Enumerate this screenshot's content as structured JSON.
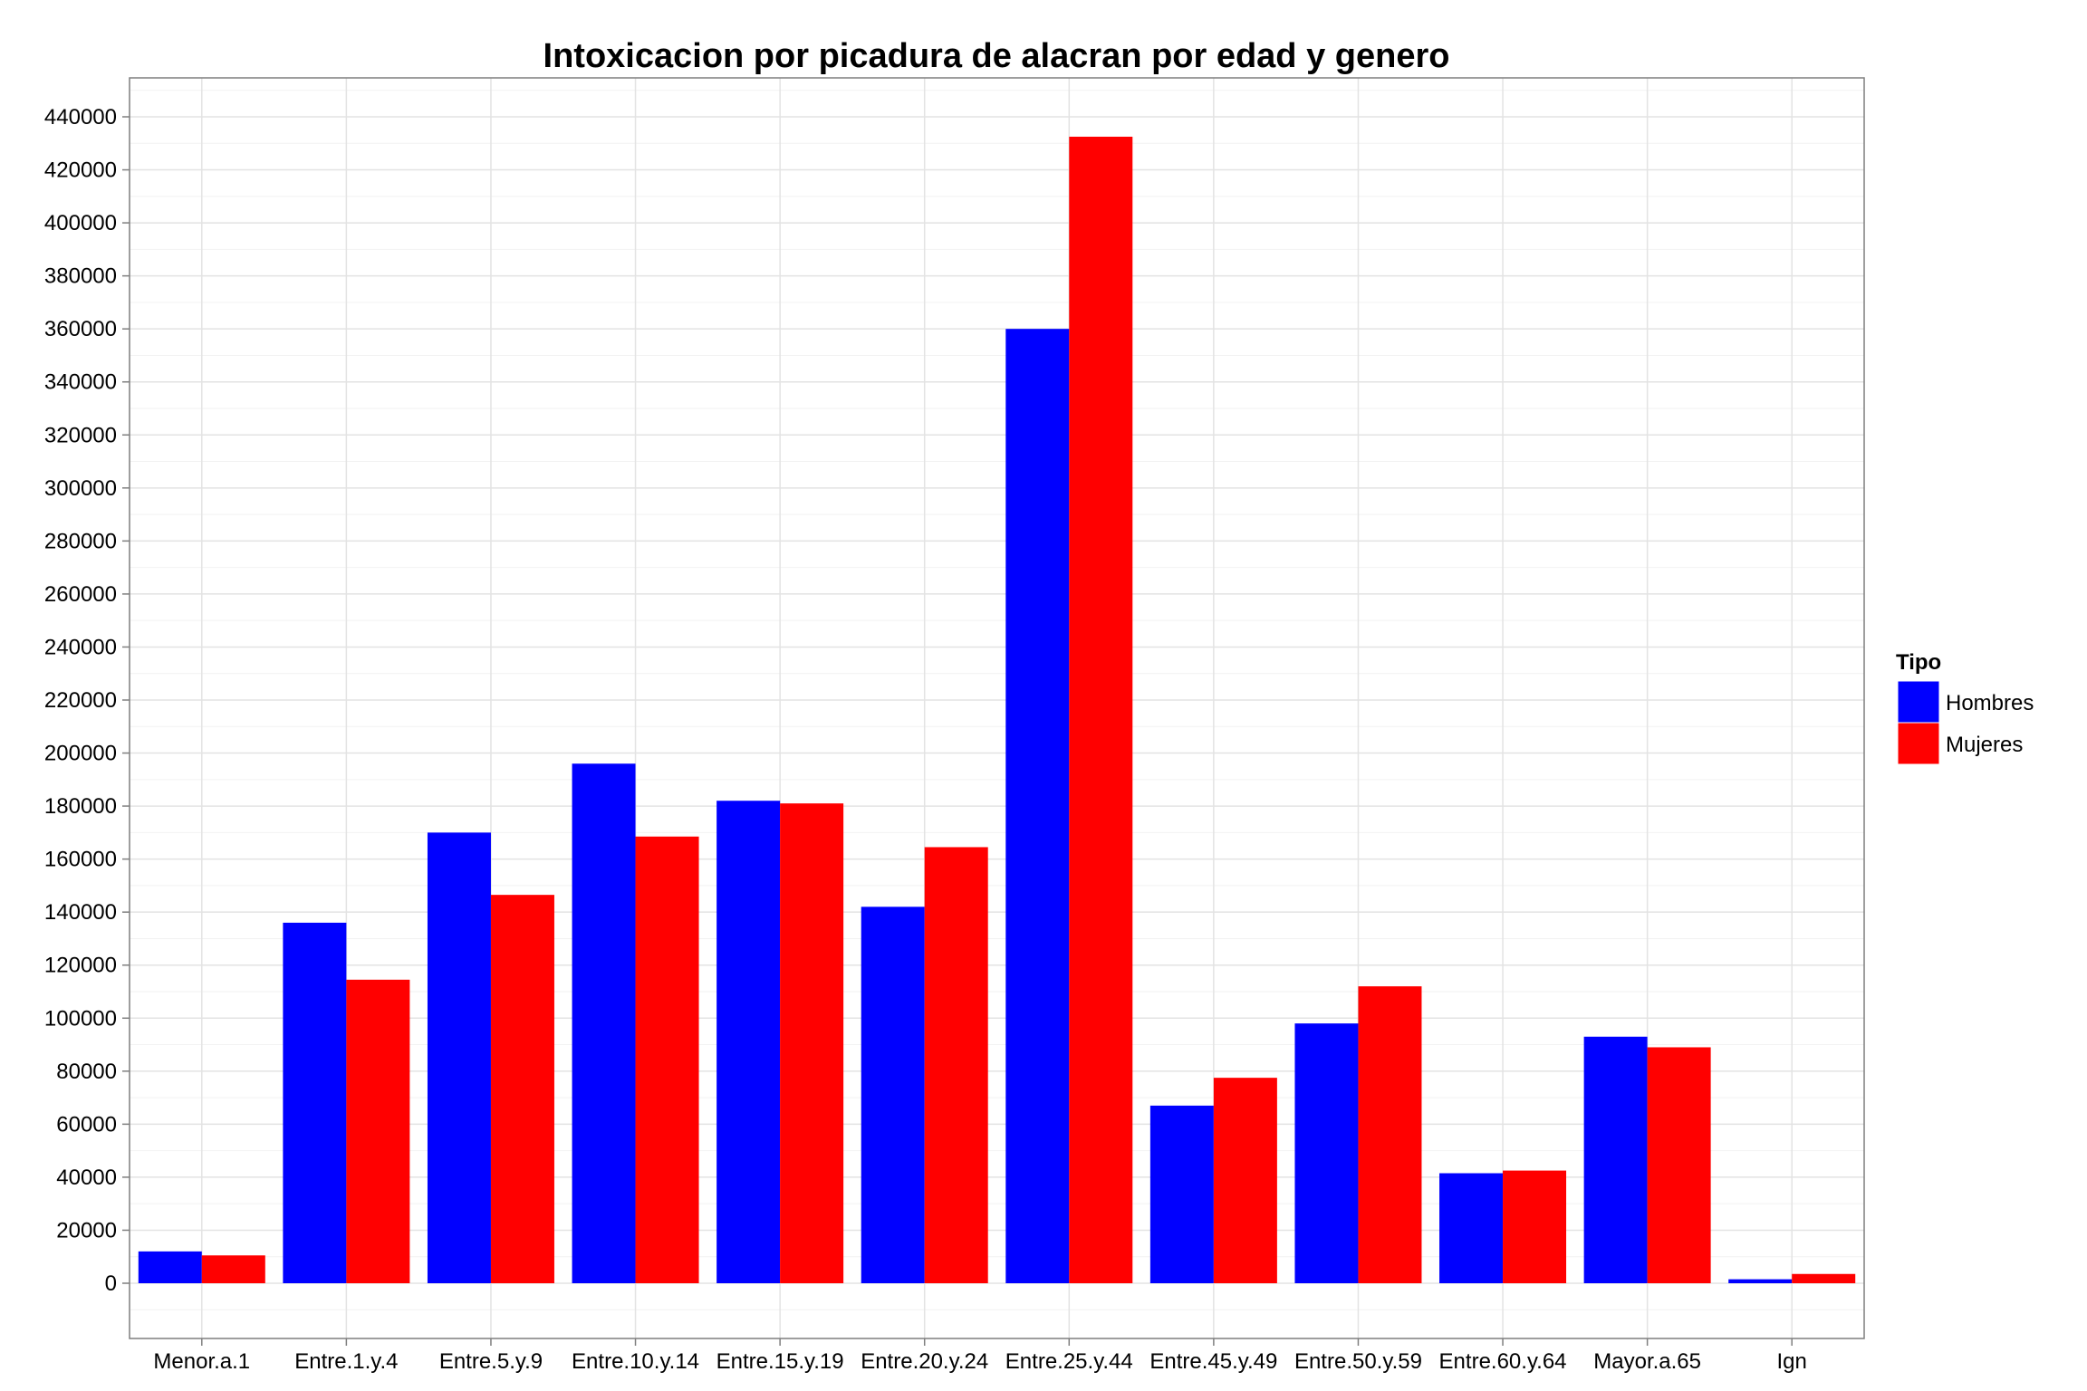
{
  "chart_data": {
    "type": "bar",
    "title": "Intoxicacion por picadura de alacran por edad y genero",
    "xlabel": "",
    "ylabel": "",
    "ylim": [
      -22000,
      455000
    ],
    "yticks": [
      0,
      20000,
      40000,
      60000,
      80000,
      100000,
      120000,
      140000,
      160000,
      180000,
      200000,
      220000,
      240000,
      260000,
      280000,
      300000,
      320000,
      340000,
      360000,
      380000,
      400000,
      420000,
      440000
    ],
    "categories": [
      "Menor.a.1",
      "Entre.1.y.4",
      "Entre.5.y.9",
      "Entre.10.y.14",
      "Entre.15.y.19",
      "Entre.20.y.24",
      "Entre.25.y.44",
      "Entre.45.y.49",
      "Entre.50.y.59",
      "Entre.60.y.64",
      "Mayor.a.65",
      "Ign"
    ],
    "series": [
      {
        "name": "Hombres",
        "color": "#0000ff",
        "values": [
          12000,
          136000,
          170000,
          196000,
          182000,
          142000,
          360000,
          67000,
          98000,
          41500,
          93000,
          1500
        ]
      },
      {
        "name": "Mujeres",
        "color": "#ff0000",
        "values": [
          10500,
          114500,
          146500,
          168500,
          181000,
          164500,
          432500,
          77500,
          112000,
          42500,
          89000,
          3500
        ]
      }
    ],
    "legend": {
      "title": "Tipo",
      "position": "right"
    },
    "grid": true
  }
}
